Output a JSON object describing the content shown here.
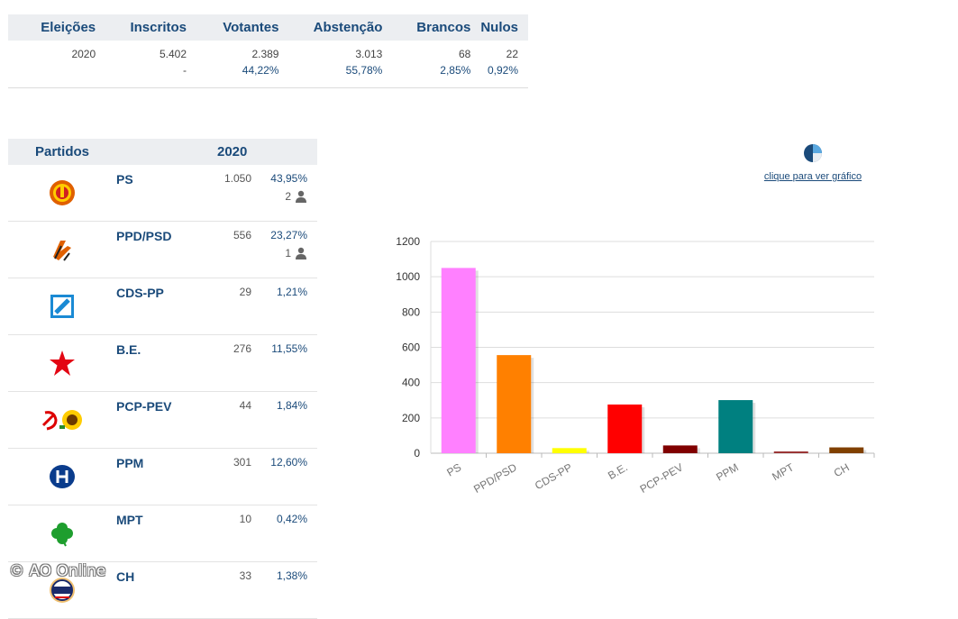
{
  "summary": {
    "headers": [
      "Eleições",
      "Inscritos",
      "Votantes",
      "Abstenção",
      "Brancos",
      "Nulos"
    ],
    "row_values": [
      "2020",
      "5.402",
      "2.389",
      "3.013",
      "68",
      "22"
    ],
    "row_pcts": [
      "",
      "-",
      "44,22%",
      "55,78%",
      "2,85%",
      "0,92%"
    ]
  },
  "parties_table": {
    "header_parties": "Partidos",
    "header_year": "2020",
    "rows": [
      {
        "name": "PS",
        "votes": "1.050",
        "pct": "43,95%",
        "seats": "2",
        "logo": "ps-logo"
      },
      {
        "name": "PPD/PSD",
        "votes": "556",
        "pct": "23,27%",
        "seats": "1",
        "logo": "psd-logo"
      },
      {
        "name": "CDS-PP",
        "votes": "29",
        "pct": "1,21%",
        "seats": "",
        "logo": "cds-logo"
      },
      {
        "name": "B.E.",
        "votes": "276",
        "pct": "11,55%",
        "seats": "",
        "logo": "be-logo"
      },
      {
        "name": "PCP-PEV",
        "votes": "44",
        "pct": "1,84%",
        "seats": "",
        "logo": "pcp-pev-logo"
      },
      {
        "name": "PPM",
        "votes": "301",
        "pct": "12,60%",
        "seats": "",
        "logo": "ppm-logo"
      },
      {
        "name": "MPT",
        "votes": "10",
        "pct": "0,42%",
        "seats": "",
        "logo": "mpt-logo"
      },
      {
        "name": "CH",
        "votes": "33",
        "pct": "1,38%",
        "seats": "",
        "logo": "chega-logo"
      }
    ]
  },
  "chart_link": {
    "label": "clique para ver gráfico",
    "icon": "pie-chart-icon"
  },
  "chart_data": {
    "type": "bar",
    "title": "",
    "xlabel": "",
    "ylabel": "",
    "categories": [
      "PS",
      "PPD/PSD",
      "CDS-PP",
      "B.E.",
      "PCP-PEV",
      "PPM",
      "MPT",
      "CH"
    ],
    "values": [
      1050,
      556,
      29,
      276,
      44,
      301,
      10,
      33
    ],
    "colors": [
      "#ff80ff",
      "#ff8000",
      "#ffff00",
      "#ff0000",
      "#800000",
      "#008080",
      "#993333",
      "#804000"
    ],
    "ylim": [
      0,
      1200
    ],
    "yticks": [
      0,
      200,
      400,
      600,
      800,
      1000,
      1200
    ],
    "grid": true
  },
  "watermark": "© AO Online"
}
